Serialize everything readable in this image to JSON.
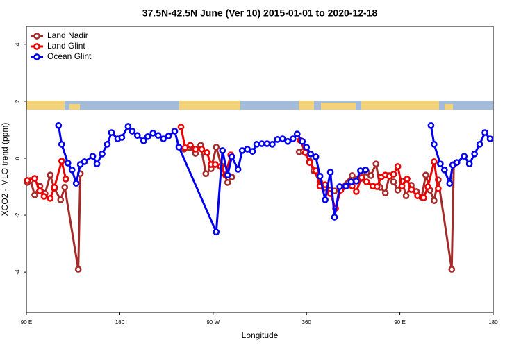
{
  "chart_data": {
    "type": "line",
    "title": "37.5N-42.5N June (Ver 10)   2015-01-01 to 2020-12-18",
    "x_label": "Longitude",
    "y_label": "XCO2 - MLO trend (ppm)",
    "xlim": [
      90,
      540
    ],
    "xticks": [
      {
        "value": 90,
        "label": "90 E"
      },
      {
        "value": 180,
        "label": "180"
      },
      {
        "value": 270,
        "label": "90 W"
      },
      360,
      {
        "value": 450,
        "label": "90 E"
      },
      {
        "value": 540,
        "label": "180"
      }
    ],
    "ylim": [
      -5.41,
      4.63
    ],
    "yticks": [
      -4,
      -2,
      0,
      2,
      4
    ],
    "legend": "top-left",
    "series": [
      {
        "name": "Land Nadir",
        "color": "#a52a2a",
        "x": [
          91,
          94,
          98,
          103,
          108,
          113,
          117,
          123,
          127,
          140,
          142,
          null,
          242,
          247,
          253,
          258,
          263,
          268,
          273,
          278,
          284,
          288,
          null,
          353,
          357,
          363,
          367,
          373,
          377,
          383,
          387,
          393,
          404,
          408,
          413,
          418,
          422,
          427,
          431,
          436,
          440,
          444,
          448,
          452,
          456,
          461,
          466,
          471,
          475,
          479,
          483,
          487,
          500,
          502
        ],
        "values": [
          -0.85,
          -0.78,
          -1.29,
          -0.98,
          -1.24,
          -0.59,
          -1.07,
          -1.46,
          -1.02,
          -3.9,
          -0.54,
          null,
          0.32,
          0.37,
          0.17,
          0.46,
          -0.54,
          -0.37,
          0.39,
          -0.27,
          -0.85,
          -0.66,
          null,
          0.22,
          0.24,
          -0.1,
          -0.44,
          -0.85,
          -1.05,
          -1.12,
          -1.15,
          -1.02,
          -0.61,
          -0.73,
          -0.71,
          -0.49,
          -0.61,
          -0.2,
          -1.02,
          -1.22,
          -0.61,
          -0.83,
          -1.12,
          -0.8,
          -1.32,
          -0.95,
          -1.17,
          -1.37,
          -0.59,
          -1.12,
          -1.49,
          -0.76,
          -3.9,
          -0.22
        ]
      },
      {
        "name": "Land Glint",
        "color": "#ee0000",
        "x": [
          91,
          98,
          103,
          107,
          113,
          117,
          124,
          128,
          null,
          239,
          243,
          248,
          253,
          259,
          264,
          268,
          272,
          277,
          282,
          287,
          null,
          354,
          359,
          363,
          369,
          373,
          378,
          383,
          388,
          393,
          404,
          408,
          413,
          418,
          424,
          428,
          432,
          436,
          440,
          444,
          448,
          452,
          457,
          461,
          467,
          473,
          477,
          483,
          487
        ],
        "values": [
          -0.78,
          -0.71,
          -1.15,
          -1.34,
          -1.41,
          -1.02,
          -0.1,
          -0.73,
          null,
          1.1,
          0.37,
          0.46,
          0.32,
          0.32,
          0.2,
          -0.22,
          -0.22,
          -0.29,
          -0.59,
          0.12,
          null,
          0.63,
          0.2,
          -0.15,
          -0.44,
          -0.98,
          -0.93,
          -1.24,
          -1.76,
          -1.12,
          -0.98,
          -1.17,
          -0.68,
          -0.83,
          -0.98,
          -1.0,
          -0.66,
          -0.59,
          -0.63,
          -0.56,
          -0.29,
          -0.98,
          -0.73,
          -1.1,
          -1.32,
          -1.39,
          -1.0,
          -0.12,
          -1.07
        ]
      },
      {
        "name": "Ocean Glint",
        "color": "#0000ee",
        "x": [
          121,
          124,
          130,
          134,
          138,
          142,
          146,
          154,
          158,
          163,
          168,
          172,
          178,
          182,
          188,
          192,
          197,
          203,
          207,
          212,
          217,
          222,
          227,
          233,
          237,
          273,
          279,
          284,
          288,
          294,
          298,
          303,
          308,
          312,
          317,
          322,
          327,
          332,
          337,
          342,
          347,
          351,
          356,
          360,
          364,
          369,
          373,
          378,
          383,
          387,
          392,
          398,
          403,
          408,
          412,
          417,
          null,
          480,
          483,
          489,
          493,
          498,
          501,
          505,
          512,
          517,
          522,
          527,
          532,
          537
        ],
        "values": [
          1.15,
          0.49,
          -0.17,
          -0.41,
          -0.88,
          -0.22,
          -0.12,
          0.07,
          -0.2,
          0.15,
          0.49,
          0.9,
          0.68,
          0.73,
          1.12,
          0.95,
          0.8,
          0.61,
          0.76,
          0.88,
          0.8,
          0.68,
          0.78,
          0.95,
          0.39,
          -2.59,
          0.27,
          -0.59,
          0.05,
          -0.39,
          0.27,
          0.32,
          0.24,
          0.49,
          0.51,
          0.51,
          0.49,
          0.66,
          0.68,
          0.59,
          0.68,
          0.85,
          0.59,
          0.39,
          0.15,
          0.05,
          -0.63,
          -1.46,
          -0.49,
          -2.07,
          -1.0,
          -0.98,
          -0.83,
          -0.8,
          -0.44,
          -0.41,
          null,
          1.15,
          0.49,
          -0.2,
          -0.41,
          -0.88,
          -0.24,
          -0.15,
          0.07,
          -0.2,
          0.15,
          0.49,
          0.9,
          0.68
        ]
      }
    ]
  }
}
